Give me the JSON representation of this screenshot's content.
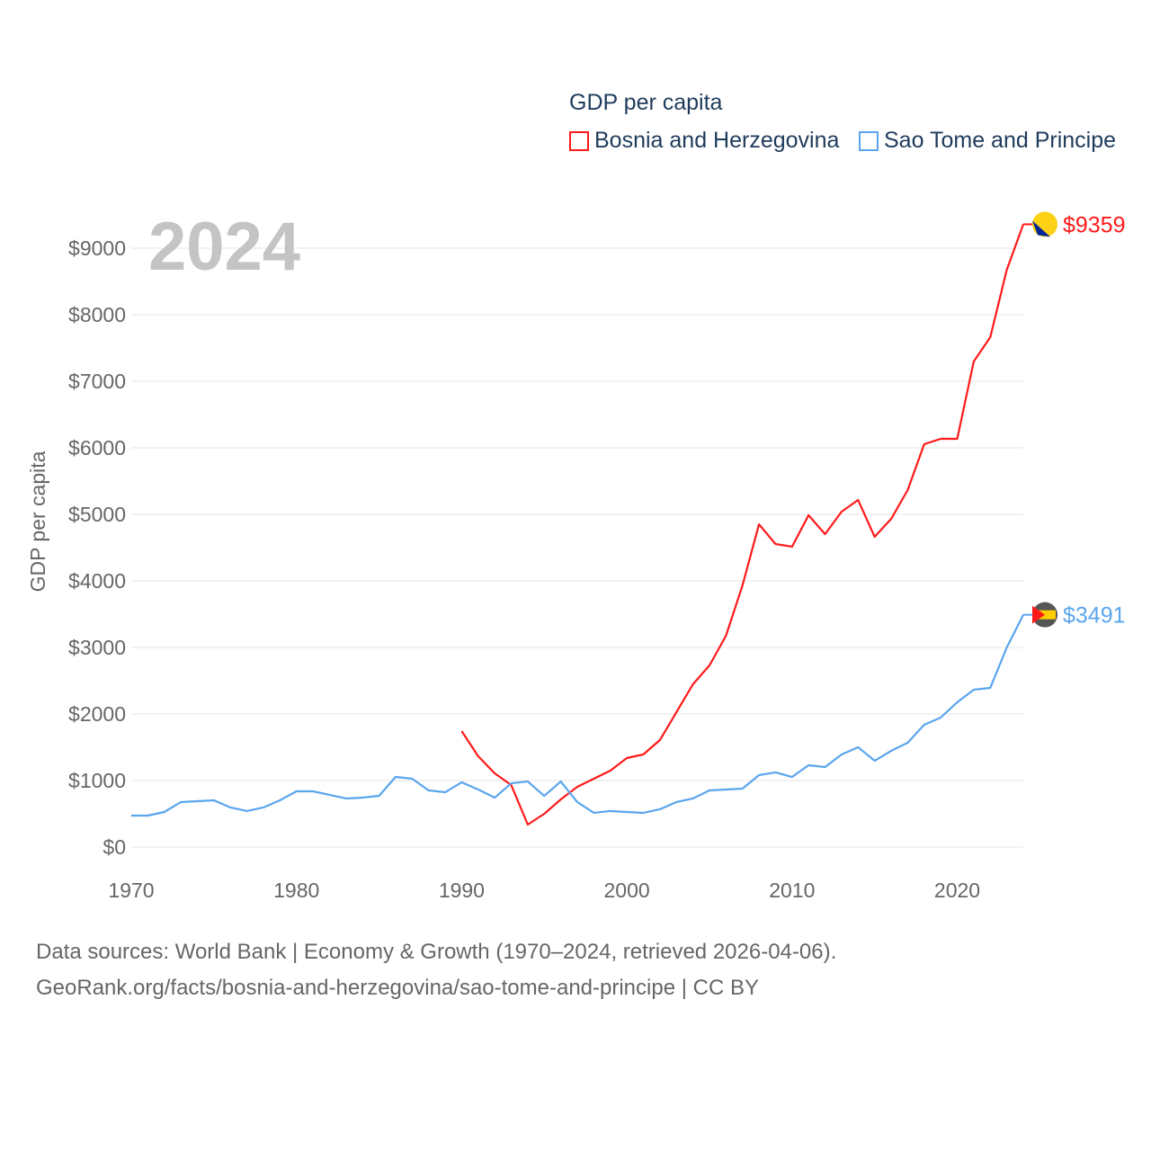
{
  "chart_data": {
    "type": "line",
    "title": "GDP per capita",
    "year_label": "2024",
    "xlabel": "",
    "ylabel": "GDP per capita",
    "xlim": [
      1970,
      2024
    ],
    "ylim": [
      0,
      9000
    ],
    "grid": true,
    "legend_placement": "top-right",
    "x_ticks": [
      1970,
      1980,
      1990,
      2000,
      2010,
      2020
    ],
    "y_ticks": [
      0,
      1000,
      2000,
      3000,
      4000,
      5000,
      6000,
      7000,
      8000,
      9000
    ],
    "y_tick_labels": [
      "$0",
      "$1000",
      "$2000",
      "$3000",
      "$4000",
      "$5000",
      "$6000",
      "$7000",
      "$8000",
      "$9000"
    ],
    "series": [
      {
        "name": "Bosnia and Herzegovina",
        "color": "#ff1a1a",
        "end_label": "$9359",
        "start_year": 1990,
        "values": [
          1743,
          1365,
          1108,
          932,
          338,
          500,
          716,
          905,
          1027,
          1149,
          1338,
          1392,
          1608,
          2027,
          2446,
          2730,
          3176,
          3932,
          4851,
          4554,
          4514,
          4986,
          4703,
          5041,
          5216,
          4662,
          4932,
          5365,
          6054,
          6135,
          6135,
          7297,
          7662,
          8676,
          9359
        ]
      },
      {
        "name": "Sao Tome and Principe",
        "color": "#5aa5ee",
        "end_label": "$3491",
        "start_year": 1970,
        "values": [
          473,
          473,
          527,
          676,
          689,
          703,
          595,
          541,
          595,
          703,
          838,
          838,
          784,
          730,
          743,
          770,
          1054,
          1027,
          851,
          824,
          973,
          865,
          743,
          959,
          986,
          770,
          986,
          676,
          514,
          541,
          527,
          514,
          568,
          676,
          730,
          851,
          865,
          878,
          1081,
          1122,
          1054,
          1230,
          1203,
          1392,
          1500,
          1297,
          1446,
          1568,
          1838,
          1946,
          2176,
          2365,
          2392,
          3000,
          3491
        ]
      }
    ]
  },
  "footer": {
    "line1": "Data sources: World Bank | Economy & Growth (1970–2024, retrieved 2026-04-06).",
    "line2": "GeoRank.org/facts/bosnia-and-herzegovina/sao-tome-and-principe | CC BY"
  }
}
